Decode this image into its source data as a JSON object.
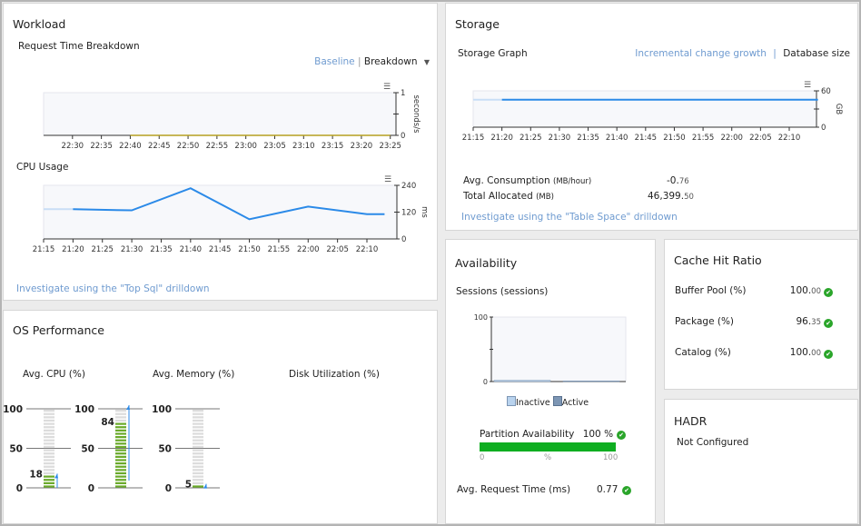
{
  "workload": {
    "title": "Workload",
    "request_time": {
      "title": "Request Time Breakdown",
      "baseline_label": "Baseline",
      "separator": "|",
      "breakdown_label": "Breakdown"
    },
    "cpu_usage": {
      "title": "CPU Usage"
    },
    "drilldown_link": "Investigate using the \"Top Sql\" drilldown"
  },
  "storage": {
    "title": "Storage",
    "graph_title": "Storage Graph",
    "incremental_label": "Incremental change growth",
    "separator": "|",
    "database_size_label": "Database size",
    "avg_consumption": {
      "label": "Avg. Consumption",
      "unit": "(MB/hour)",
      "value_main": "-0.",
      "value_dec": "76"
    },
    "total_allocated": {
      "label": "Total Allocated",
      "unit": "(MB)",
      "value_main": "46,399.",
      "value_dec": "50"
    },
    "drilldown_link": "Investigate using the \"Table Space\" drilldown"
  },
  "os_performance": {
    "title": "OS Performance",
    "gauges": [
      {
        "label": "Avg. CPU (%)",
        "value": 18,
        "value_label": "18"
      },
      {
        "label": "Avg. Memory (%)",
        "value": 84,
        "value_label": "84"
      },
      {
        "label": "Disk Utilization (%)",
        "value": 5,
        "value_label": "5"
      }
    ],
    "scale_labels": [
      "100",
      "50",
      "0"
    ],
    "bar_color": "#6aaa2a",
    "empty_color": "#dcdcdc"
  },
  "availability": {
    "title": "Availability",
    "sessions_title": "Sessions (sessions)",
    "legend": [
      "Inactive",
      "Active"
    ],
    "partition_label": "Partition Availability",
    "partition_value": "100 %",
    "partition_percent": 100,
    "partition_axis": [
      "0",
      "%",
      "100"
    ],
    "avg_request_label": "Avg. Request Time (ms)",
    "avg_request_value": "0.77"
  },
  "cache": {
    "title": "Cache Hit Ratio",
    "items": [
      {
        "label": "Buffer Pool (%)",
        "value_main": "100.",
        "value_dec": "00",
        "status": "ok"
      },
      {
        "label": "Package (%)",
        "value_main": "96.",
        "value_dec": "35",
        "status": "ok"
      },
      {
        "label": "Catalog (%)",
        "value_main": "100.",
        "value_dec": "00",
        "status": "ok"
      }
    ]
  },
  "hadr": {
    "title": "HADR",
    "status": "Not Configured"
  },
  "chart_data": [
    {
      "type": "line",
      "title": "Request Time Breakdown",
      "ylabel": "seconds/s",
      "ylim": [
        0,
        1
      ],
      "x_ticks": [
        "22:30",
        "22:35",
        "22:40",
        "22:45",
        "22:50",
        "22:55",
        "23:00",
        "23:05",
        "23:10",
        "23:15",
        "23:20",
        "23:25"
      ],
      "y_ticks": [
        "0",
        "1"
      ],
      "series": [
        {
          "x": [
            "22:40",
            "23:25"
          ],
          "values": [
            0,
            0
          ]
        }
      ]
    },
    {
      "type": "line",
      "title": "CPU Usage",
      "ylabel": "ms",
      "ylim": [
        0,
        240
      ],
      "y_ticks": [
        "0",
        "120",
        "240"
      ],
      "x_ticks": [
        "21:15",
        "21:20",
        "21:25",
        "21:30",
        "21:35",
        "21:40",
        "21:45",
        "21:50",
        "21:55",
        "22:00",
        "22:05",
        "22:10"
      ],
      "series": [
        {
          "x": [
            "21:20",
            "21:30",
            "21:40",
            "21:50",
            "22:00",
            "22:10",
            "22:13"
          ],
          "values": [
            133,
            128,
            227,
            88,
            145,
            111,
            111
          ]
        }
      ],
      "color": "#2b8ae8"
    },
    {
      "type": "line",
      "title": "Storage Graph",
      "ylabel": "GB",
      "ylim": [
        0,
        60
      ],
      "y_ticks": [
        "0",
        "60"
      ],
      "x_ticks": [
        "21:15",
        "21:20",
        "21:25",
        "21:30",
        "21:35",
        "21:40",
        "21:45",
        "21:50",
        "21:55",
        "22:00",
        "22:05",
        "22:10"
      ],
      "series": [
        {
          "x": [
            "21:20",
            "22:15"
          ],
          "values": [
            45.3,
            45.3
          ]
        }
      ],
      "color": "#2b8ae8"
    },
    {
      "type": "bar",
      "title": "Sessions (sessions)",
      "ylim": [
        0,
        100
      ],
      "y_ticks": [
        "0",
        "100"
      ],
      "categories": [
        "Inactive",
        "Active"
      ],
      "values": [
        2,
        1
      ],
      "colors": [
        "#b9d3ee",
        "#7d96b4"
      ]
    }
  ]
}
